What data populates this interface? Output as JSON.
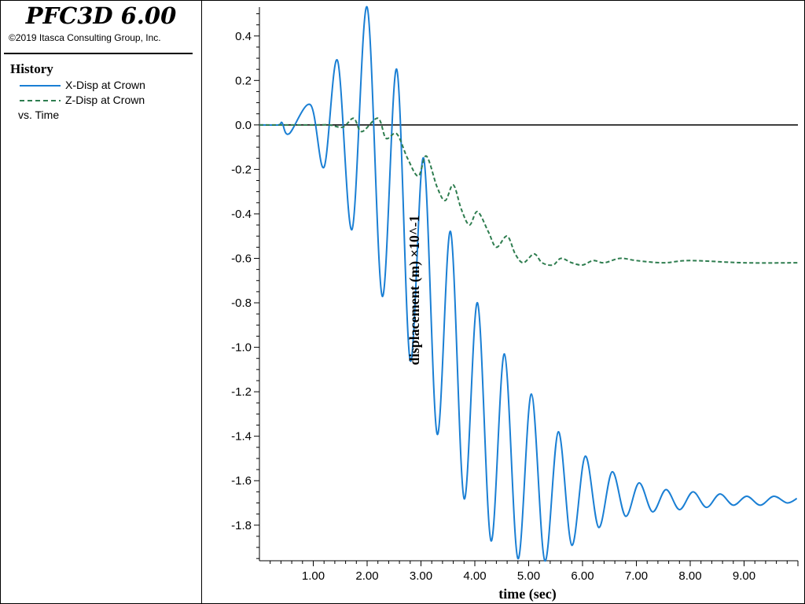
{
  "app": {
    "title": "PFC3D 6.00",
    "copyright": "©2019 Itasca Consulting Group, Inc."
  },
  "legend": {
    "heading": "History",
    "items": [
      {
        "label": "X-Disp at Crown",
        "color": "#1a7fd4",
        "style": "solid"
      },
      {
        "label": "Z-Disp at Crown",
        "color": "#2e7d4f",
        "style": "dashed"
      }
    ],
    "footer": "vs. Time"
  },
  "chart_data": {
    "type": "line",
    "xlabel": "time (sec)",
    "ylabel": "displacement (m) ×10^-1",
    "xlim": [
      0,
      10
    ],
    "ylim": [
      -1.96,
      0.53
    ],
    "x_ticks": [
      "1.00",
      "2.00",
      "3.00",
      "4.00",
      "5.00",
      "6.00",
      "7.00",
      "8.00",
      "9.00"
    ],
    "y_ticks": [
      "0.4",
      "0.2",
      "0.0",
      "-0.2",
      "-0.4",
      "-0.6",
      "-0.8",
      "-1.0",
      "-1.2",
      "-1.4",
      "-1.6",
      "-1.8"
    ],
    "zero_line": true,
    "series": [
      {
        "name": "X-Disp at Crown",
        "color": "#1a7fd4",
        "dash": "solid",
        "points": [
          [
            0,
            0
          ],
          [
            0.35,
            0
          ],
          [
            0.42,
            0.01
          ],
          [
            0.55,
            -0.04
          ],
          [
            0.95,
            0.09
          ],
          [
            1.2,
            -0.19
          ],
          [
            1.45,
            0.29
          ],
          [
            1.72,
            -0.47
          ],
          [
            2.0,
            0.53
          ],
          [
            2.28,
            -0.77
          ],
          [
            2.55,
            0.25
          ],
          [
            2.8,
            -1.06
          ],
          [
            3.05,
            -0.15
          ],
          [
            3.3,
            -1.39
          ],
          [
            3.55,
            -0.48
          ],
          [
            3.8,
            -1.68
          ],
          [
            4.05,
            -0.8
          ],
          [
            4.3,
            -1.87
          ],
          [
            4.55,
            -1.03
          ],
          [
            4.8,
            -1.95
          ],
          [
            5.05,
            -1.21
          ],
          [
            5.3,
            -1.96
          ],
          [
            5.55,
            -1.38
          ],
          [
            5.8,
            -1.89
          ],
          [
            6.05,
            -1.49
          ],
          [
            6.3,
            -1.81
          ],
          [
            6.55,
            -1.56
          ],
          [
            6.8,
            -1.76
          ],
          [
            7.05,
            -1.61
          ],
          [
            7.3,
            -1.74
          ],
          [
            7.55,
            -1.64
          ],
          [
            7.8,
            -1.73
          ],
          [
            8.05,
            -1.65
          ],
          [
            8.3,
            -1.72
          ],
          [
            8.55,
            -1.66
          ],
          [
            8.8,
            -1.71
          ],
          [
            9.05,
            -1.67
          ],
          [
            9.3,
            -1.71
          ],
          [
            9.55,
            -1.67
          ],
          [
            9.8,
            -1.7
          ],
          [
            9.98,
            -1.68
          ]
        ]
      },
      {
        "name": "Z-Disp at Crown",
        "color": "#2e7d4f",
        "dash": "dashed",
        "points": [
          [
            0,
            0
          ],
          [
            1.0,
            0
          ],
          [
            1.3,
            0.0
          ],
          [
            1.55,
            -0.01
          ],
          [
            1.75,
            0.03
          ],
          [
            1.9,
            -0.03
          ],
          [
            2.2,
            0.03
          ],
          [
            2.35,
            -0.06
          ],
          [
            2.55,
            -0.04
          ],
          [
            2.75,
            -0.15
          ],
          [
            2.95,
            -0.23
          ],
          [
            3.1,
            -0.14
          ],
          [
            3.3,
            -0.28
          ],
          [
            3.45,
            -0.34
          ],
          [
            3.6,
            -0.27
          ],
          [
            3.75,
            -0.38
          ],
          [
            3.9,
            -0.45
          ],
          [
            4.05,
            -0.39
          ],
          [
            4.25,
            -0.48
          ],
          [
            4.4,
            -0.55
          ],
          [
            4.6,
            -0.5
          ],
          [
            4.75,
            -0.58
          ],
          [
            4.9,
            -0.62
          ],
          [
            5.1,
            -0.58
          ],
          [
            5.25,
            -0.62
          ],
          [
            5.45,
            -0.63
          ],
          [
            5.6,
            -0.6
          ],
          [
            5.8,
            -0.62
          ],
          [
            6.0,
            -0.63
          ],
          [
            6.2,
            -0.61
          ],
          [
            6.4,
            -0.62
          ],
          [
            6.7,
            -0.6
          ],
          [
            7.0,
            -0.61
          ],
          [
            7.5,
            -0.62
          ],
          [
            8.0,
            -0.61
          ],
          [
            9.0,
            -0.62
          ],
          [
            10.0,
            -0.62
          ]
        ]
      }
    ]
  }
}
